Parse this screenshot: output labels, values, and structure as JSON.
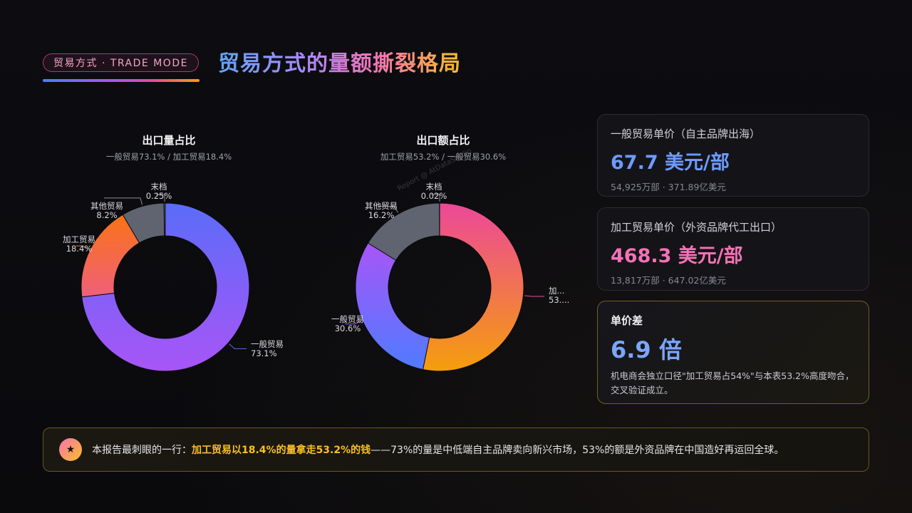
{
  "header": {
    "tag": "贸易方式 · TRADE MODE",
    "title": "贸易方式的量额撕裂格局"
  },
  "watermark": "Report @ AtDataStudio",
  "colors": {
    "general_trade": "#7c6cf5",
    "processing_trade": "#f59e42",
    "other_trade": "#5f6470",
    "last_tier": "#5f6470",
    "accent_blue": "#6d9bff",
    "accent_pink": "#f472b6",
    "accent_gold": "#fbbf24"
  },
  "chart_data": [
    {
      "type": "pie",
      "style": "donut",
      "title": "出口量占比",
      "subtitle": "一般贸易73.1% / 加工贸易18.4%",
      "slices": [
        {
          "label": "一般贸易",
          "value": 73.1,
          "value_label": "73.1%",
          "color_stops": [
            "#5b6cf8",
            "#a855f7"
          ]
        },
        {
          "label": "加工贸易",
          "value": 18.4,
          "value_label": "18.4%",
          "color_stops": [
            "#f97316",
            "#f0607a"
          ]
        },
        {
          "label": "其他贸易",
          "value": 8.2,
          "value_label": "8.2%",
          "color_stops": [
            "#5f6470",
            "#5f6470"
          ]
        },
        {
          "label": "末档",
          "value": 0.25,
          "value_label": "0.25%",
          "color_stops": [
            "#5f6470",
            "#5f6470"
          ]
        }
      ]
    },
    {
      "type": "pie",
      "style": "donut",
      "title": "出口额占比",
      "subtitle": "加工贸易53.2% / 一般贸易30.6%",
      "slices": [
        {
          "label": "加...",
          "value": 53.2,
          "value_label": "53....",
          "color_stops": [
            "#ec4899",
            "#f59e0b"
          ]
        },
        {
          "label": "一般贸易",
          "value": 30.6,
          "value_label": "30.6%",
          "color_stops": [
            "#a855f7",
            "#4f7bff"
          ]
        },
        {
          "label": "其他贸易",
          "value": 16.2,
          "value_label": "16.2%",
          "color_stops": [
            "#5f6470",
            "#5f6470"
          ]
        },
        {
          "label": "末档",
          "value": 0.02,
          "value_label": "0.02%",
          "color_stops": [
            "#5f6470",
            "#5f6470"
          ]
        }
      ]
    }
  ],
  "cards": [
    {
      "label": "一般贸易单价（自主品牌出海）",
      "value": "67.7 美元/部",
      "sub": "54,925万部 · 371.89亿美元"
    },
    {
      "label": "加工贸易单价（外资品牌代工出口）",
      "value": "468.3 美元/部",
      "sub": "13,817万部 · 647.02亿美元"
    },
    {
      "label": "单价差",
      "value": "6.9 倍",
      "note": "机电商会独立口径\"加工贸易占54%\"与本表53.2%高度吻合，交叉验证成立。"
    }
  ],
  "banner": {
    "icon": "star-icon",
    "star": "★",
    "prefix": "本报告最刺眼的一行：",
    "highlight": "加工贸易以18.4%的量拿走53.2%的钱",
    "suffix": "——73%的量是中低端自主品牌卖向新兴市场，53%的额是外资品牌在中国造好再运回全球。"
  }
}
